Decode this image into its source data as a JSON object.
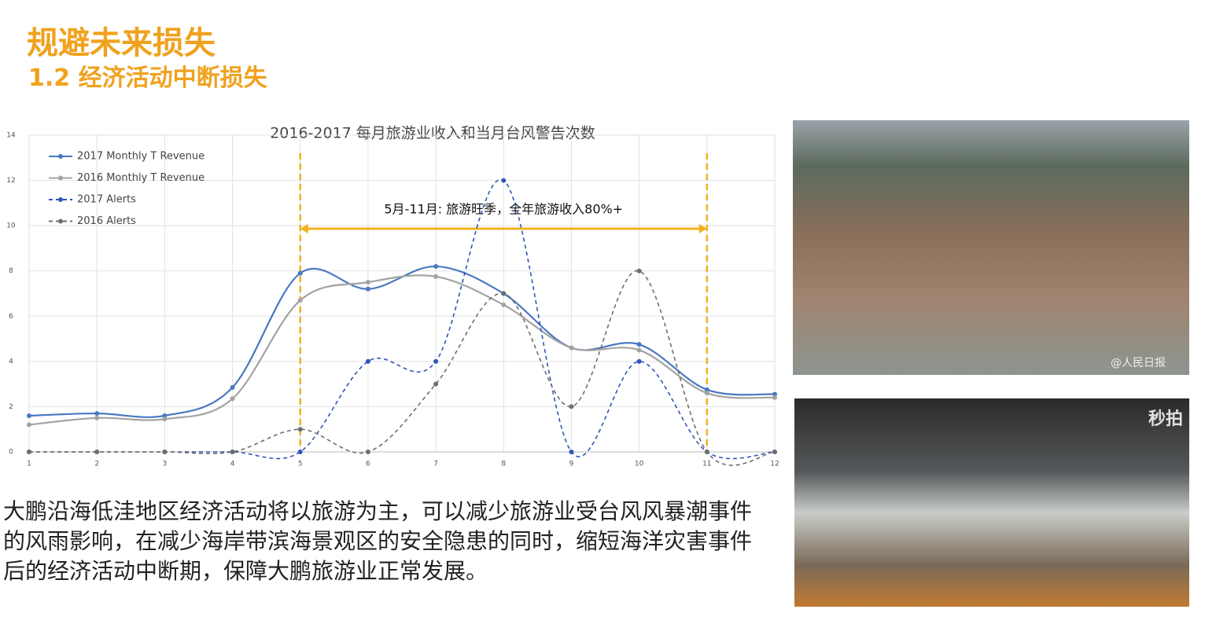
{
  "header": {
    "title": "规避未来损失",
    "subtitle": "1.2 经济活动中断损失"
  },
  "chart_data": {
    "type": "line",
    "title": "2016-2017 每月旅游业收入和当月台风警告次数",
    "x": [
      1,
      2,
      3,
      4,
      5,
      6,
      7,
      8,
      9,
      10,
      11,
      12
    ],
    "xlim": [
      1,
      12
    ],
    "xticks": [
      1,
      2,
      3,
      4,
      5,
      6,
      7,
      8,
      9,
      10,
      11,
      12
    ],
    "ylim": [
      0,
      14
    ],
    "yticks": [
      0,
      2,
      4,
      6,
      8,
      10,
      12,
      14
    ],
    "grid": true,
    "smooth": true,
    "legend": "upper left",
    "series": [
      {
        "name": "2017 Monthly T Revenue",
        "color": "#4a78c2",
        "style": "solid",
        "values": [
          1.6,
          1.7,
          1.6,
          2.85,
          7.9,
          7.2,
          8.2,
          7.0,
          4.6,
          4.75,
          2.75,
          2.55
        ]
      },
      {
        "name": "2016 Monthly T Revenue",
        "color": "#a3a3a3",
        "style": "solid",
        "values": [
          1.2,
          1.5,
          1.45,
          2.35,
          6.7,
          7.5,
          7.75,
          6.5,
          4.6,
          4.5,
          2.6,
          2.4
        ]
      },
      {
        "name": "2017 Alerts",
        "color": "#2f56b8",
        "style": "dashed",
        "values": [
          0,
          0,
          0,
          0,
          0,
          4,
          4,
          12,
          0,
          4,
          0,
          0
        ]
      },
      {
        "name": "2016 Alerts",
        "color": "#6e6e6e",
        "style": "dashed",
        "values": [
          0,
          0,
          0,
          0,
          1,
          0,
          3,
          7,
          2,
          8,
          0,
          0
        ]
      }
    ],
    "annotation": {
      "text": "5月-11月: 旅游旺季，全年旅游收入80%+",
      "range": [
        5,
        11
      ],
      "color": "#f2b01e"
    }
  },
  "paragraph": "大鹏沿海低洼地区经济活动将以旅游为主，可以减少旅游业受台风风暴潮事件的风雨影响，在减少海岸带滨海景观区的安全隐患的同时，缩短海洋灾害事件后的经济活动中断期，保障大鹏旅游业正常发展。",
  "images": [
    {
      "caption": "@人民日报"
    },
    {
      "caption": "秒拍"
    }
  ]
}
